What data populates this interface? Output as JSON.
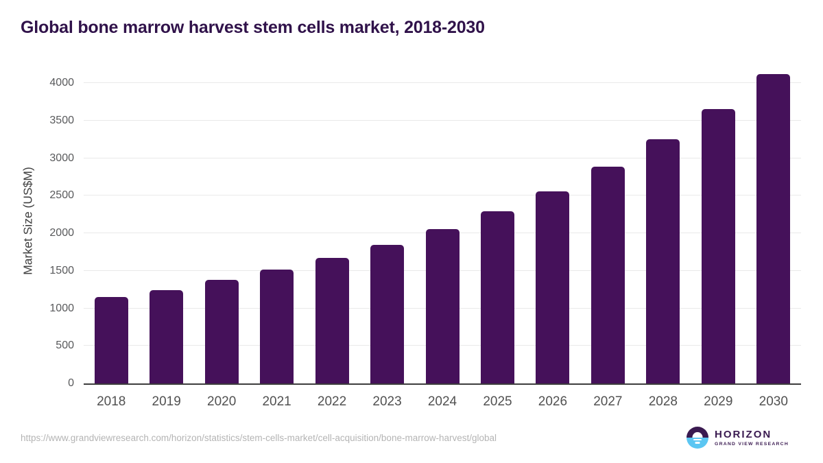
{
  "title": "Global bone marrow harvest stem cells market, 2018-2030",
  "source_url": "https://www.grandviewresearch.com/horizon/statistics/stem-cells-market/cell-acquisition/bone-marrow-harvest/global",
  "logo": {
    "name": "HORIZON",
    "subtitle": "GRAND VIEW RESEARCH"
  },
  "colors": {
    "bar": "#45115a",
    "title_text": "#30124a",
    "axis_tick_text": "#58595b",
    "gridline": "#e9e9e9",
    "axis_line": "#3d3d3d",
    "url_text": "#b4b4b4",
    "logo_purple": "#3a1a50",
    "logo_blue": "#5bc6f2"
  },
  "chart_data": {
    "type": "bar",
    "title": "Global bone marrow harvest stem cells market, 2018-2030",
    "categories": [
      "2018",
      "2019",
      "2020",
      "2021",
      "2022",
      "2023",
      "2024",
      "2025",
      "2026",
      "2027",
      "2028",
      "2029",
      "2030"
    ],
    "values": [
      1155,
      1245,
      1375,
      1515,
      1670,
      1845,
      2055,
      2290,
      2555,
      2885,
      3250,
      3655,
      4115
    ],
    "xlabel": "",
    "ylabel": "Market Size (US$M)",
    "ylim": [
      0,
      4000
    ],
    "ytick_step": 500,
    "grid": true,
    "legend_position": "none",
    "bar_color": "#45115a"
  }
}
